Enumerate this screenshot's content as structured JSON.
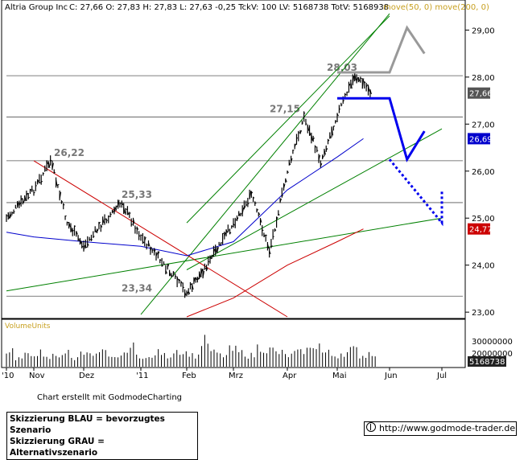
{
  "header": {
    "symbol": "Altria Group Inc",
    "stats": "C: 27,66 O: 27,83 H: 27,83 L: 27,63 -0,25 TckV: 100 LV: 5168738 TotV: 5168938",
    "ma_legend": "move(50, 0) move(200, 0)"
  },
  "volume_label": "VolumeUnits",
  "footer": {
    "credit": "Chart erstellt mit GodmodeCharting",
    "legend_blue": "Skizzierung BLAU = bevorzugtes Szenario",
    "legend_grey": "Skizzierung GRAU = Alternativszenario",
    "url": "http://www.godmode-trader.de"
  },
  "colors": {
    "price": "#000000",
    "ma50": "#0000cc",
    "ma200": "#cc0000",
    "trend_green": "#008000",
    "downtrend_red": "#cc0000",
    "scenario_blue": "#0000ee",
    "scenario_grey": "#999999",
    "level_grey": "#777777",
    "header_ma": "#c8a020",
    "volume_label": "#c8a020"
  },
  "chart_data": {
    "type": "candlestick",
    "y_range": [
      22.9,
      29.4
    ],
    "y_ticks": [
      "29,00",
      "28,00",
      "27,00",
      "26,00",
      "25,00",
      "24,00",
      "23,00"
    ],
    "x_ticks": [
      "'10",
      "Nov",
      "Dez",
      "'11",
      "Feb",
      "Mrz",
      "Apr",
      "Mai",
      "Jun",
      "Jul"
    ],
    "volume_ticks": [
      "30000000",
      "20000000"
    ],
    "volume_last_label": "5168738",
    "price_badges": [
      {
        "label": "27,66",
        "value": 27.66,
        "color": "#555555"
      },
      {
        "label": "26,69",
        "value": 26.69,
        "color": "#0000cc"
      },
      {
        "label": "24,77",
        "value": 24.77,
        "color": "#cc0000"
      }
    ],
    "levels": [
      {
        "label": "28,03",
        "value": 28.03
      },
      {
        "label": "27,15",
        "value": 27.15
      },
      {
        "label": "26,22",
        "value": 26.22
      },
      {
        "label": "25,33",
        "value": 25.33
      },
      {
        "label": "23,34",
        "value": 23.34
      }
    ],
    "price_path": [
      [
        "'10",
        25.0
      ],
      [
        "Nov",
        25.6
      ],
      [
        "Nov",
        26.22
      ],
      [
        "Nov",
        24.9
      ],
      [
        "Dez",
        24.4
      ],
      [
        "Dez",
        24.9
      ],
      [
        "Dez",
        25.33
      ],
      [
        "'11",
        24.6
      ],
      [
        "'11",
        24.0
      ],
      [
        "Feb",
        23.4
      ],
      [
        "Feb",
        24.1
      ],
      [
        "Mrz",
        24.9
      ],
      [
        "Mrz",
        25.5
      ],
      [
        "Mrz",
        24.3
      ],
      [
        "Apr",
        26.0
      ],
      [
        "Apr",
        27.15
      ],
      [
        "Apr",
        26.2
      ],
      [
        "Mai",
        27.2
      ],
      [
        "Mai",
        28.03
      ],
      [
        "Mai",
        27.66
      ]
    ],
    "ma50_path": [
      [
        "'10",
        24.7
      ],
      [
        "Nov",
        24.6
      ],
      [
        "Dez",
        24.5
      ],
      [
        "'11",
        24.4
      ],
      [
        "Feb",
        24.2
      ],
      [
        "Mrz",
        24.5
      ],
      [
        "Apr",
        25.6
      ],
      [
        "Mai",
        26.3
      ],
      [
        "Mai",
        26.69
      ]
    ],
    "ma200_path": [
      [
        "Feb",
        22.9
      ],
      [
        "Mrz",
        23.3
      ],
      [
        "Apr",
        24.0
      ],
      [
        "Mai",
        24.5
      ],
      [
        "Mai",
        24.77
      ]
    ],
    "scenario_blue": [
      [
        "Mai",
        27.55
      ],
      [
        "Jun",
        27.55
      ],
      [
        "Jun",
        26.25
      ],
      [
        "Jun",
        26.85
      ]
    ],
    "scenario_blue_dotted": [
      [
        "Jun",
        26.25
      ],
      [
        "Jul",
        24.9
      ],
      [
        "Jul",
        25.6
      ]
    ],
    "scenario_grey": [
      [
        "Mai",
        28.1
      ],
      [
        "Jun",
        28.1
      ],
      [
        "Jun",
        29.05
      ],
      [
        "Jun",
        28.5
      ]
    ],
    "volume_profile": [
      6,
      3,
      4,
      5,
      3,
      4,
      5,
      3,
      6,
      4,
      5,
      3,
      4,
      7,
      4,
      3,
      5,
      4,
      6,
      5,
      4,
      9,
      5,
      4,
      6,
      5,
      4,
      7,
      6,
      5,
      4,
      5,
      6,
      8,
      5,
      4,
      5,
      6,
      4,
      5
    ]
  }
}
